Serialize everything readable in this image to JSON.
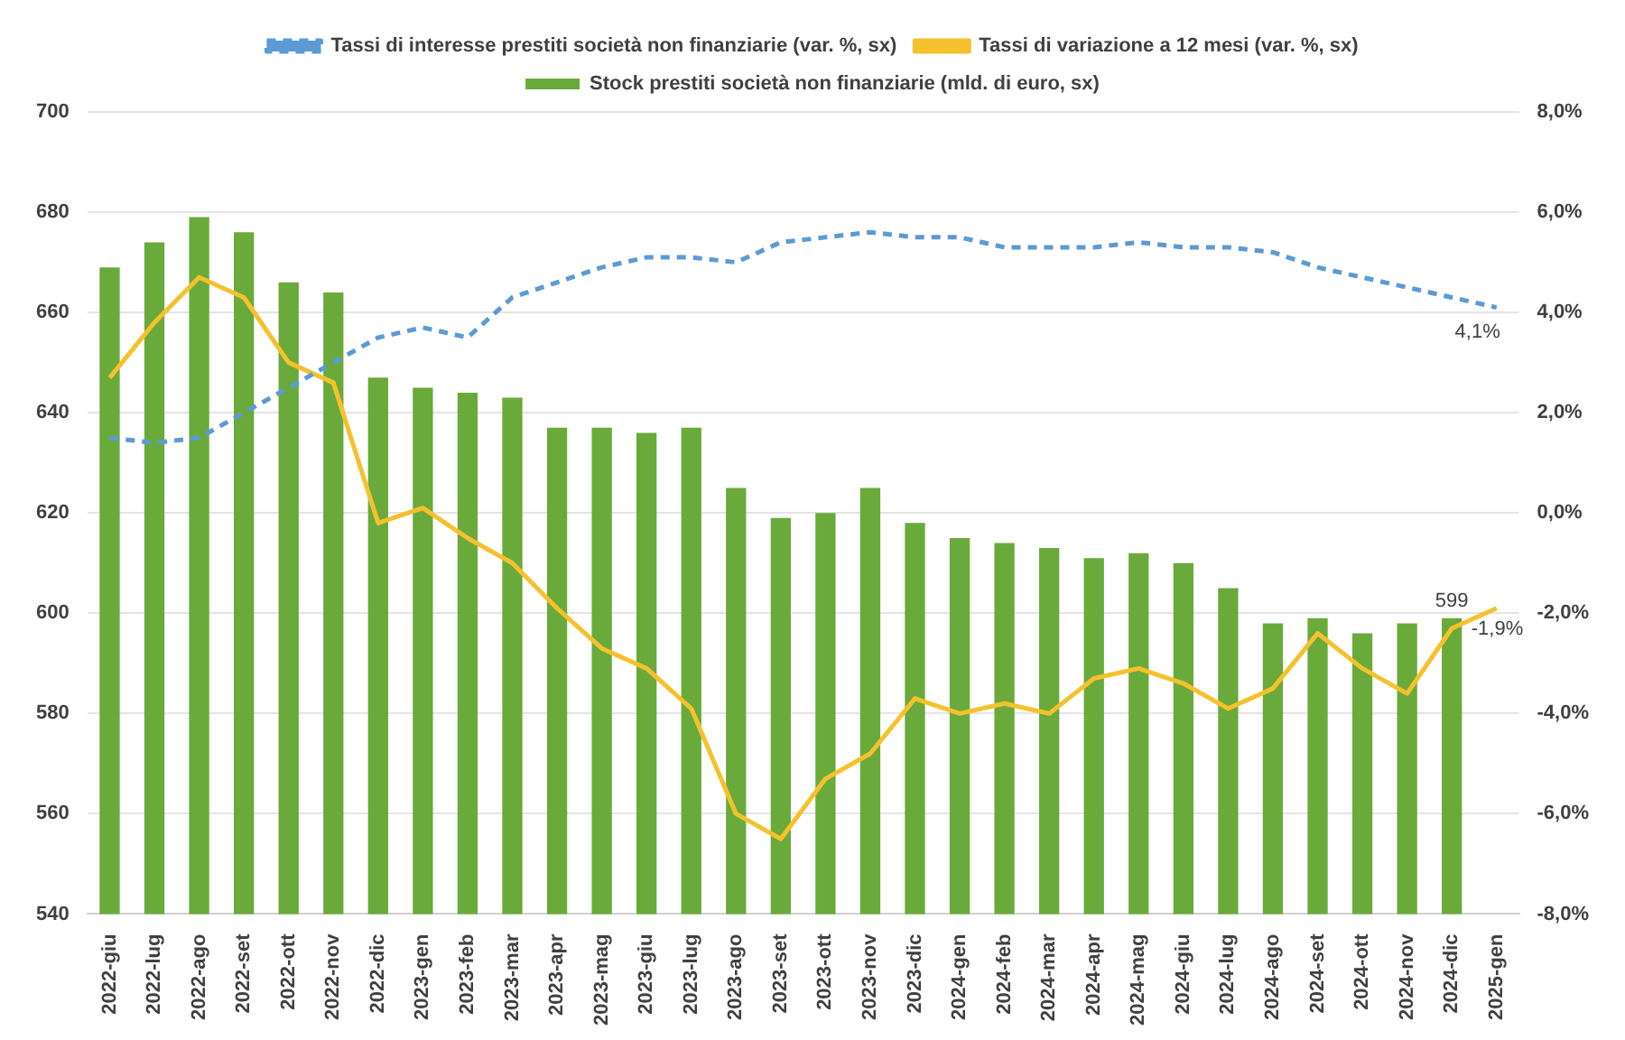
{
  "chart_data": {
    "type": "bar",
    "categories": [
      "2022-giu",
      "2022-lug",
      "2022-ago",
      "2022-set",
      "2022-ott",
      "2022-nov",
      "2022-dic",
      "2023-gen",
      "2023-feb",
      "2023-mar",
      "2023-apr",
      "2023-mag",
      "2023-giu",
      "2023-lug",
      "2023-ago",
      "2023-set",
      "2023-ott",
      "2023-nov",
      "2023-dic",
      "2024-gen",
      "2024-feb",
      "2024-mar",
      "2024-apr",
      "2024-mag",
      "2024-giu",
      "2024-lug",
      "2024-ago",
      "2024-set",
      "2024-ott",
      "2024-nov",
      "2024-dic",
      "2025-gen"
    ],
    "series": [
      {
        "name": "Stock prestiti società non finanziarie (mld. di euro, sx)",
        "color": "#6aaa3a",
        "values": [
          669,
          674,
          679,
          676,
          666,
          664,
          647,
          645,
          644,
          643,
          637,
          637,
          636,
          637,
          625,
          619,
          620,
          625,
          618,
          615,
          614,
          613,
          611,
          612,
          610,
          605,
          598,
          599,
          596,
          598,
          599,
          null
        ],
        "value_labels": [
          null,
          null,
          null,
          null,
          null,
          null,
          null,
          null,
          null,
          null,
          null,
          null,
          null,
          null,
          null,
          null,
          null,
          null,
          null,
          null,
          null,
          null,
          null,
          null,
          null,
          null,
          null,
          null,
          null,
          null,
          "599",
          null
        ]
      },
      {
        "name": "Tassi di interesse prestiti società non finanziarie (var. %, sx)",
        "type": "line",
        "axis": "y2",
        "line_style": "dashed",
        "color": "#5b9bd5",
        "values": [
          1.5,
          1.4,
          1.5,
          2.0,
          2.5,
          3.0,
          3.5,
          3.7,
          3.5,
          4.3,
          4.6,
          4.9,
          5.1,
          5.1,
          5.0,
          5.4,
          5.5,
          5.6,
          5.5,
          5.5,
          5.3,
          5.3,
          5.3,
          5.4,
          5.3,
          5.3,
          5.2,
          4.9,
          4.7,
          4.5,
          4.3,
          4.1
        ],
        "value_labels": [
          null,
          null,
          null,
          null,
          null,
          null,
          null,
          null,
          null,
          null,
          null,
          null,
          null,
          null,
          null,
          null,
          null,
          null,
          null,
          null,
          null,
          null,
          null,
          null,
          null,
          null,
          null,
          null,
          null,
          null,
          null,
          "4,1%"
        ]
      },
      {
        "name": "Tassi di variazione a 12 mesi (var. %, sx)",
        "type": "line",
        "axis": "y2",
        "line_style": "solid",
        "color": "#f5c12e",
        "values": [
          2.7,
          3.8,
          4.7,
          4.3,
          3.0,
          2.6,
          -0.2,
          0.1,
          -0.5,
          -1.0,
          -1.9,
          -2.7,
          -3.1,
          -3.9,
          -6.0,
          -6.5,
          -5.3,
          -4.8,
          -3.7,
          -4.0,
          -3.8,
          -4.0,
          -3.3,
          -3.1,
          -3.4,
          -3.9,
          -3.5,
          -2.4,
          -3.1,
          -3.6,
          -2.3,
          -1.9
        ],
        "value_labels": [
          null,
          null,
          null,
          null,
          null,
          null,
          null,
          null,
          null,
          null,
          null,
          null,
          null,
          null,
          null,
          null,
          null,
          null,
          null,
          null,
          null,
          null,
          null,
          null,
          null,
          null,
          null,
          null,
          null,
          null,
          null,
          "-1,9%"
        ]
      }
    ],
    "ylim": [
      540,
      700
    ],
    "yticks": [
      540,
      560,
      580,
      600,
      620,
      640,
      660,
      680,
      700
    ],
    "y2lim": [
      -8,
      8
    ],
    "y2ticks": [
      {
        "value": -8,
        "label": "-8,0%"
      },
      {
        "value": -6,
        "label": "-6,0%"
      },
      {
        "value": -4,
        "label": "-4,0%"
      },
      {
        "value": -2,
        "label": "-2,0%"
      },
      {
        "value": 0,
        "label": "0,0%"
      },
      {
        "value": 2,
        "label": "2,0%"
      },
      {
        "value": 4,
        "label": "4,0%"
      },
      {
        "value": 6,
        "label": "6,0%"
      },
      {
        "value": 8,
        "label": "8,0%"
      }
    ],
    "grid": "y",
    "legend": "top",
    "marker": "none"
  }
}
